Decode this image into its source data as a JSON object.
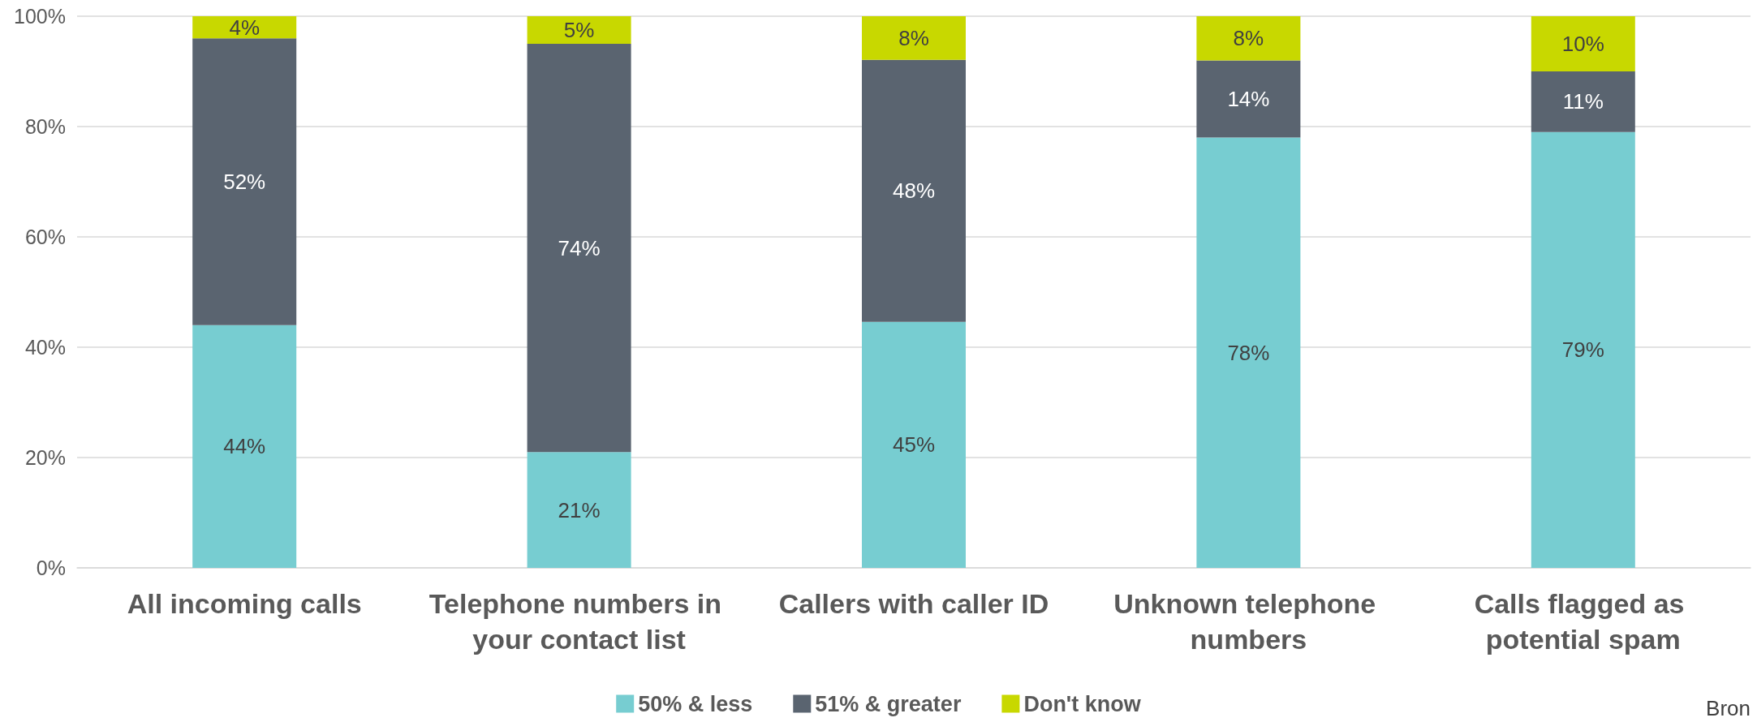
{
  "chart_data": {
    "type": "bar",
    "stacked": true,
    "categories": [
      "All incoming calls",
      "Telephone numbers in your contact list",
      "Callers with caller ID",
      "Unknown telephone numbers",
      "Calls flagged as potential spam"
    ],
    "series": [
      {
        "name": "50% & less",
        "color": "#77cdd1",
        "values": [
          44,
          21,
          44.6,
          78,
          79
        ],
        "value_labels": [
          "44%",
          "21%",
          "45%",
          "78%",
          "79%"
        ]
      },
      {
        "name": "51% & greater",
        "color": "#5a6470",
        "values": [
          52,
          74,
          47.5,
          14,
          11
        ],
        "value_labels": [
          "52%",
          "74%",
          "48%",
          "14%",
          "11%"
        ]
      },
      {
        "name": "Don't know",
        "color": "#c8d800",
        "values": [
          4,
          5,
          7.9,
          8,
          10
        ],
        "value_labels": [
          "4%",
          "5%",
          "8%",
          "8%",
          "10%"
        ]
      }
    ],
    "ylim": [
      0,
      100
    ],
    "yticks": [
      {
        "value": 0,
        "label": "0%"
      },
      {
        "value": 20,
        "label": "20%"
      },
      {
        "value": 40,
        "label": "40%"
      },
      {
        "value": 60,
        "label": "60%"
      },
      {
        "value": 80,
        "label": "80%"
      },
      {
        "value": 100,
        "label": "100%"
      }
    ],
    "grid": "y",
    "legend": "bottom",
    "annotations": [
      "Bron"
    ]
  }
}
